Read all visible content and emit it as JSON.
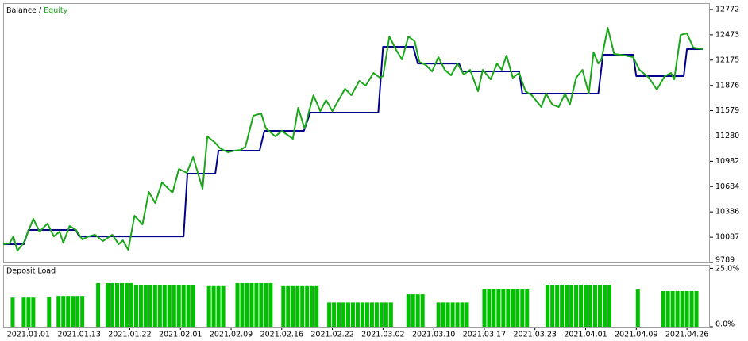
{
  "chart_data": [
    {
      "type": "line",
      "legend_separator": "/",
      "xlim": [
        0,
        111
      ],
      "ylim": [
        9789,
        12846
      ],
      "yticks": [
        12772,
        12473,
        12175,
        11876,
        11579,
        11280,
        10982,
        10684,
        10386,
        10087,
        9789
      ],
      "series": [
        {
          "name": "Balance",
          "color": "#00008b",
          "x": [
            0,
            3.25,
            4,
            11.5,
            12,
            28.5,
            29.1,
            33.5,
            34,
            40.5,
            41.25,
            47.5,
            48.5,
            59.25,
            60,
            64.75,
            65.5,
            72,
            72.5,
            81.5,
            82,
            94,
            94.75,
            99.5,
            100,
            107.5,
            108,
            110.5
          ],
          "values": [
            10004,
            10004,
            10172,
            10172,
            10097,
            10097,
            10836,
            10836,
            11107,
            11107,
            11341,
            11341,
            11556,
            11556,
            12332,
            12332,
            12135,
            12135,
            12042,
            12042,
            11780,
            11780,
            12238,
            12238,
            11986,
            11986,
            12304,
            12304
          ]
        },
        {
          "name": "Equity",
          "color": "#19a619",
          "x": [
            0,
            1,
            1.6,
            2.25,
            3.25,
            4.75,
            5.75,
            7,
            8,
            8.9,
            9.5,
            10.5,
            11.5,
            12.5,
            13.5,
            14.5,
            15.75,
            17.25,
            18.25,
            18.9,
            19.75,
            20.75,
            22,
            23,
            24,
            25.1,
            26.75,
            27.75,
            29,
            30,
            31.5,
            32.25,
            33.5,
            34.25,
            35.5,
            36.5,
            37.5,
            38.25,
            39.5,
            40.75,
            41.5,
            43,
            44,
            45.75,
            46.6,
            47.6,
            49,
            50.1,
            51,
            52,
            54,
            55,
            56.25,
            57.25,
            58.5,
            59.5,
            60,
            61,
            62,
            63,
            64,
            65,
            65.75,
            66.75,
            67.75,
            68.75,
            69.75,
            70.75,
            71.75,
            72.75,
            73.75,
            75,
            75.75,
            77,
            78,
            78.75,
            79.5,
            80.5,
            81.5,
            82.5,
            83.5,
            85,
            85.75,
            86.75,
            87.75,
            88.75,
            89.5,
            90.5,
            91.5,
            92.5,
            93.25,
            94,
            94.5,
            95.5,
            96.5,
            98.25,
            99.5,
            100.5,
            102,
            103.25,
            104.5,
            105.5,
            106,
            107,
            108,
            109,
            110.5
          ],
          "values": [
            10004,
            10013,
            10097,
            9929,
            10022,
            10303,
            10153,
            10247,
            10097,
            10153,
            10022,
            10219,
            10172,
            10060,
            10097,
            10116,
            10041,
            10116,
            10004,
            10050,
            9938,
            10340,
            10237,
            10621,
            10490,
            10733,
            10611,
            10892,
            10845,
            11032,
            10658,
            11275,
            11200,
            11135,
            11088,
            11107,
            11116,
            11153,
            11518,
            11546,
            11369,
            11275,
            11341,
            11247,
            11612,
            11369,
            11761,
            11574,
            11705,
            11574,
            11836,
            11761,
            11930,
            11874,
            12023,
            11967,
            11986,
            12453,
            12304,
            12182,
            12453,
            12397,
            12154,
            12117,
            12042,
            12210,
            12061,
            11995,
            12135,
            12005,
            12061,
            11808,
            12061,
            11948,
            12135,
            12061,
            12229,
            11967,
            12023,
            11808,
            11761,
            11621,
            11780,
            11649,
            11621,
            11780,
            11649,
            11967,
            12061,
            11780,
            12266,
            12135,
            12182,
            12556,
            12248,
            12229,
            12210,
            12061,
            11967,
            11827,
            11986,
            12023,
            11948,
            12472,
            12491,
            12322,
            12304
          ]
        }
      ]
    },
    {
      "type": "bar",
      "title": "Deposit Load",
      "color": "#00c000",
      "xlim": [
        0,
        111
      ],
      "ylim": [
        0,
        26.5
      ],
      "yticks": [
        {
          "value": 25,
          "label": "25.0%"
        },
        {
          "value": 0,
          "label": "0.0%"
        }
      ],
      "xticks": [
        {
          "value": 4,
          "label": "2021.01.01"
        },
        {
          "value": 12,
          "label": "2021.01.13"
        },
        {
          "value": 20,
          "label": "2021.01.22"
        },
        {
          "value": 28,
          "label": "2021.02.01"
        },
        {
          "value": 36,
          "label": "2021.02.09"
        },
        {
          "value": 44,
          "label": "2021.02.16"
        },
        {
          "value": 52,
          "label": "2021.02.22"
        },
        {
          "value": 60,
          "label": "2021.03.02"
        },
        {
          "value": 68,
          "label": "2021.03.10"
        },
        {
          "value": 76,
          "label": "2021.03.17"
        },
        {
          "value": 84,
          "label": "2021.03.23"
        },
        {
          "value": 92,
          "label": "2021.04.01"
        },
        {
          "value": 100,
          "label": "2021.04.09"
        },
        {
          "value": 108,
          "label": "2021.04.26"
        }
      ],
      "x": [
        1.5,
        3.25,
        4,
        4.75,
        7.25,
        8.75,
        9.5,
        10.25,
        11,
        11.75,
        12.5,
        15,
        16.5,
        17.25,
        18,
        18.75,
        19.5,
        20.25,
        21,
        21.75,
        22.5,
        23.25,
        24,
        24.75,
        25.5,
        26.25,
        27,
        27.75,
        28.5,
        29.25,
        30,
        32.5,
        33.25,
        34,
        34.75,
        37,
        37.75,
        38.5,
        39.25,
        40,
        40.75,
        41.5,
        42.25,
        44.25,
        45,
        45.75,
        46.5,
        47.25,
        48,
        48.75,
        49.5,
        51.5,
        52.25,
        53,
        53.75,
        54.5,
        55.25,
        56,
        56.75,
        57.5,
        58.25,
        59,
        59.75,
        60.5,
        61.25,
        64,
        64.75,
        65.5,
        66.25,
        68.75,
        69.5,
        70.25,
        71,
        71.75,
        72.5,
        73.25,
        76,
        76.75,
        77.5,
        78.25,
        79,
        79.75,
        80.5,
        81.25,
        82,
        82.75,
        86,
        86.75,
        87.5,
        88.25,
        89,
        89.75,
        90.5,
        91.25,
        92,
        92.75,
        93.5,
        94.25,
        95,
        95.75,
        100.25,
        104.25,
        105,
        105.75,
        106.5,
        107.25,
        108,
        108.75,
        109.5
      ],
      "values": [
        12.5,
        12.5,
        12.5,
        12.5,
        12.8,
        13.2,
        13.2,
        13.2,
        13.2,
        13.2,
        13.2,
        18.7,
        18.7,
        18.7,
        18.7,
        18.7,
        18.7,
        18.7,
        17.7,
        17.7,
        17.7,
        17.7,
        17.7,
        17.7,
        17.7,
        17.7,
        17.7,
        17.7,
        17.7,
        17.7,
        17.7,
        17.4,
        17.4,
        17.4,
        17.4,
        18.7,
        18.7,
        18.7,
        18.7,
        18.7,
        18.7,
        18.7,
        18.7,
        17.4,
        17.4,
        17.4,
        17.4,
        17.4,
        17.4,
        17.4,
        17.4,
        10.4,
        10.4,
        10.4,
        10.4,
        10.4,
        10.4,
        10.4,
        10.4,
        10.4,
        10.4,
        10.4,
        10.4,
        10.4,
        10.4,
        13.9,
        13.9,
        13.9,
        13.9,
        10.4,
        10.4,
        10.4,
        10.4,
        10.4,
        10.4,
        10.4,
        16,
        16,
        16,
        16,
        16,
        16,
        16,
        16,
        16,
        16,
        18,
        18,
        18,
        18,
        18,
        18,
        18,
        18,
        18,
        18,
        18,
        18,
        18,
        18,
        16,
        15.3,
        15.3,
        15.3,
        15.3,
        15.3,
        15.3,
        15.3,
        15.3
      ]
    }
  ]
}
